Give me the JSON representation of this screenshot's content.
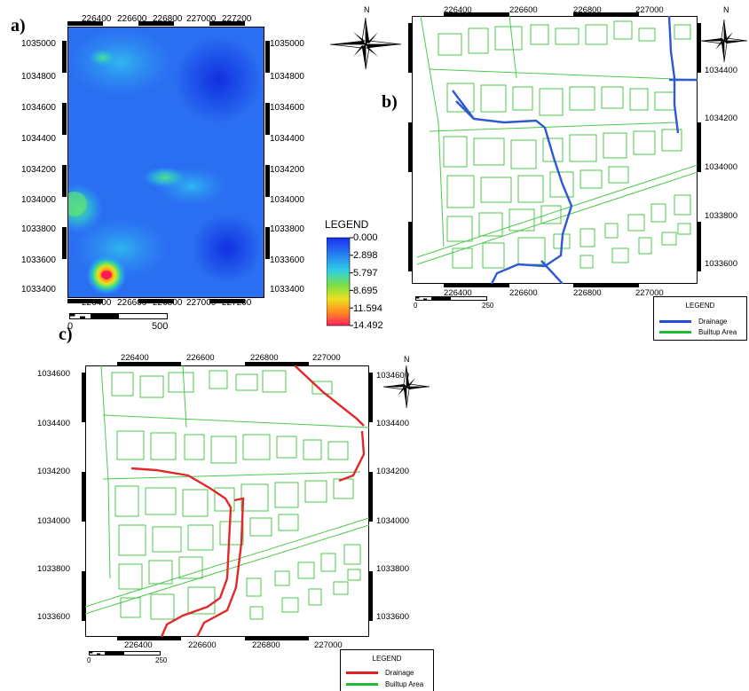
{
  "panel_a": {
    "label": "a)",
    "x_ticks": [
      "226400",
      "226600",
      "226800",
      "227000",
      "227200"
    ],
    "y_ticks": [
      "1035000",
      "1034800",
      "1034600",
      "1034400",
      "1034200",
      "1034000",
      "1033800",
      "1033600",
      "1033400"
    ],
    "legend_title": "LEGEND",
    "legend_values": [
      "0.000",
      "2.898",
      "5.797",
      "8.695",
      "11.594",
      "14.492"
    ],
    "scale_labels": [
      "0",
      "500"
    ],
    "colors": {
      "low": "#1b3ff0",
      "high": "#ff2a5a"
    }
  },
  "panel_b": {
    "label": "b)",
    "north_label": "N",
    "x_ticks": [
      "226400",
      "226600",
      "226800",
      "227000"
    ],
    "y_ticks": [
      "1034400",
      "1034200",
      "1034000",
      "1033800",
      "1033600"
    ],
    "scale_labels": [
      "0",
      "250"
    ],
    "legend_title": "LEGEND",
    "legend_items": [
      {
        "label": "Drainage",
        "color": "#2050d0"
      },
      {
        "label": "Builtup Area",
        "color": "#22bb33"
      }
    ]
  },
  "panel_c": {
    "label": "c)",
    "north_label": "N",
    "x_ticks": [
      "226400",
      "226600",
      "226800",
      "227000"
    ],
    "y_ticks": [
      "1034600",
      "1034400",
      "1034200",
      "1034000",
      "1033800",
      "1033600"
    ],
    "scale_labels": [
      "0",
      "250"
    ],
    "legend_title": "LEGEND",
    "legend_items": [
      {
        "label": "Drainage",
        "color": "#e02020"
      },
      {
        "label": "Builtup Area",
        "color": "#22bb33"
      }
    ]
  },
  "north_label_a": "N"
}
